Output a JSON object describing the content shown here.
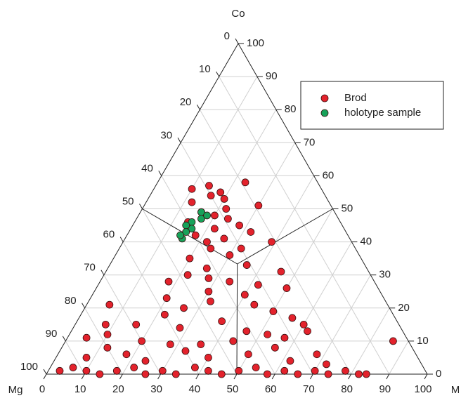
{
  "chart_data": {
    "type": "ternary",
    "axis_labels": {
      "top": "Co",
      "left": "Mg",
      "right": "M"
    },
    "bottom_ticks": [
      0,
      10,
      20,
      30,
      40,
      50,
      60,
      70,
      80,
      90,
      100
    ],
    "left_ticks": [
      0,
      10,
      20,
      30,
      40,
      50,
      60,
      70,
      80,
      90,
      100
    ],
    "right_ticks": [
      0,
      10,
      20,
      30,
      40,
      50,
      60,
      70,
      80,
      90,
      100
    ],
    "grid": true,
    "legend": "upper right",
    "series": [
      {
        "name": "Brod",
        "color": "#e3222c",
        "co": [
          1,
          2,
          1,
          0,
          1,
          2,
          0,
          1,
          0,
          2,
          1,
          0,
          1,
          2,
          0,
          1,
          0,
          1,
          0,
          1,
          0,
          0,
          5,
          8,
          6,
          4,
          9,
          7,
          5,
          10,
          6,
          8,
          4,
          6,
          9,
          3,
          10,
          12,
          15,
          18,
          14,
          20,
          22,
          16,
          24,
          13,
          19,
          25,
          21,
          17,
          23,
          15,
          12,
          28,
          30,
          32,
          35,
          38,
          28,
          33,
          36,
          40,
          27,
          31,
          26,
          38,
          29,
          42,
          44,
          46,
          48,
          41,
          45,
          43,
          49,
          47,
          52,
          54,
          56,
          50,
          53,
          55,
          57,
          51,
          10,
          13,
          11,
          40,
          58,
          11,
          21,
          15
        ],
        "m": [
          3,
          6,
          10,
          14,
          18,
          22,
          26,
          30,
          34,
          38,
          42,
          46,
          50,
          54,
          58,
          62,
          66,
          70,
          74,
          78,
          82,
          84,
          8,
          12,
          18,
          24,
          28,
          33,
          40,
          44,
          50,
          56,
          62,
          68,
          36,
          72,
          20,
          10,
          16,
          22,
          28,
          26,
          32,
          38,
          40,
          46,
          50,
          30,
          44,
          56,
          20,
          60,
          52,
          18,
          22,
          26,
          20,
          24,
          34,
          36,
          30,
          22,
          42,
          46,
          50,
          32,
          28,
          18,
          22,
          14,
          20,
          26,
          28,
          32,
          16,
          24,
          12,
          16,
          10,
          22,
          20,
          18,
          14,
          30,
          86,
          62,
          57,
          39,
          23,
          5,
          6,
          8
        ]
      },
      {
        "name": "holotype sample",
        "color": "#17a25a",
        "co": [
          49,
          47,
          46,
          44,
          45,
          43,
          41,
          48,
          42
        ],
        "m": [
          16,
          17,
          15,
          16,
          14,
          15,
          15,
          18,
          14
        ]
      }
    ]
  }
}
